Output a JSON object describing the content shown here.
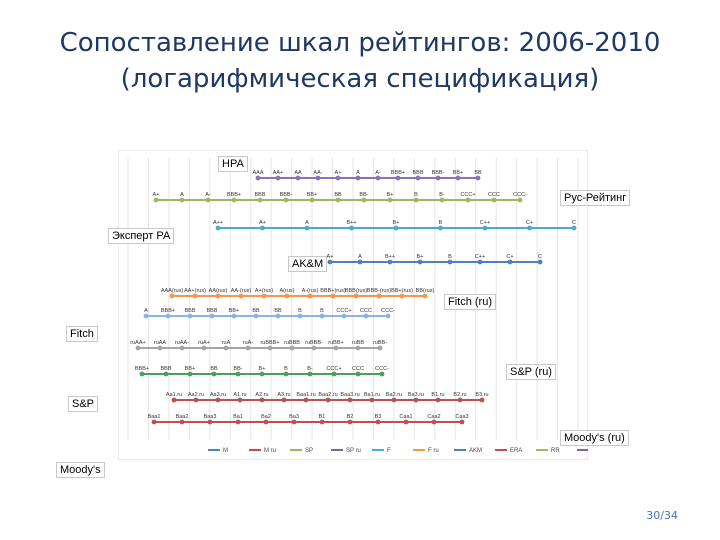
{
  "slide": {
    "title_line1": "Сопоставление шкал рейтингов: 2006-2010",
    "title_line2": "(логарифмическая спецификация)",
    "page": "30/34"
  },
  "chart_data": {
    "type": "scatter",
    "grid": true,
    "series": [
      {
        "name": "НРА",
        "color": "#8e6fb8",
        "ticks": [
          "AAA",
          "AA+",
          "AA",
          "AA-",
          "A+",
          "A",
          "A-",
          "BBB+",
          "BBB",
          "BBB-",
          "BB+",
          "BB"
        ]
      },
      {
        "name": "Рус-Рейтинг",
        "color": "#9bbb59",
        "ticks": [
          "A+",
          "A",
          "A-",
          "BBB+",
          "BBB",
          "BBB-",
          "BB+",
          "BB",
          "BB-",
          "B+",
          "B",
          "B-",
          "CCC+",
          "CCC",
          "CCC-"
        ]
      },
      {
        "name": "Эксперт РА",
        "color": "#4bacc6",
        "ticks": [
          "A++",
          "A+",
          "A",
          "B++",
          "B+",
          "B",
          "C++",
          "C+",
          "C"
        ]
      },
      {
        "name": "AK&M",
        "color": "#4f81bd",
        "ticks": [
          "A+",
          "A",
          "B++",
          "B+",
          "B",
          "C++",
          "C+",
          "C"
        ]
      },
      {
        "name": "Fitch (ru)",
        "color": "#f79646",
        "ticks": [
          "AAA(rus)",
          "AA+(rus)",
          "AA(rus)",
          "AA-(rus)",
          "A+(rus)",
          "A(rus)",
          "A-(rus)",
          "BBB+(rus)",
          "BBB(rus)",
          "BBB-(rus)",
          "BB+(rus)",
          "BB(rus)"
        ]
      },
      {
        "name": "Fitch",
        "color": "#8db3e2",
        "ticks": [
          "A",
          "BBB+",
          "BBB",
          "BBB",
          "BB+",
          "BB",
          "BB",
          "B",
          "B",
          "CCC+",
          "CCC",
          "CCC-"
        ]
      },
      {
        "name": "S&P (ru)",
        "color": "#a5a5a5",
        "ticks": [
          "ruAA+",
          "ruAA",
          "ruAA-",
          "ruA+",
          "ruA",
          "ruA-",
          "ruBBB+",
          "ruBBB",
          "ruBBB-",
          "ruBB+",
          "ruBB",
          "ruBB-"
        ]
      },
      {
        "name": "S&P",
        "color": "#4f9c5f",
        "ticks": [
          "BBB+",
          "BBB",
          "BB+",
          "BB",
          "BB-",
          "B+",
          "B",
          "B-",
          "CCC+",
          "CCC",
          "CCC-"
        ]
      },
      {
        "name": "Moody's (ru)",
        "color": "#c0504d",
        "ticks": [
          "Aa1.ru",
          "Aa2.ru",
          "Aa3.ru",
          "A1.ru",
          "A2.ru",
          "A3.ru",
          "Baa1.ru",
          "Baa2.ru",
          "Baa3.ru",
          "Ba1.ru",
          "Ba2.ru",
          "Ba3.ru",
          "B1.ru",
          "B2.ru",
          "B3.ru"
        ]
      },
      {
        "name": "Moody's",
        "color": "#c0504d",
        "ticks": [
          "Baa1",
          "Baa2",
          "Baa3",
          "Ba1",
          "Ba2",
          "Ba3",
          "B1",
          "B2",
          "B3",
          "Caa1",
          "Caa2",
          "Caa3"
        ]
      }
    ],
    "legend": [
      "M",
      "M ru",
      "SP",
      "SP ru",
      "F",
      "F ru",
      "AKM",
      "ERA",
      "RR",
      "NRA"
    ]
  }
}
